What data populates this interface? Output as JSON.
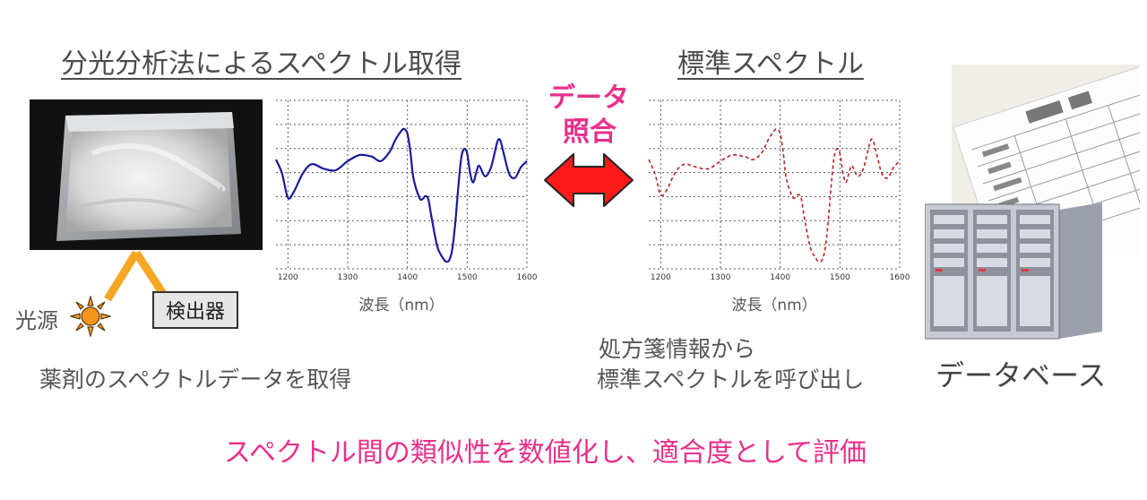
{
  "left": {
    "title": "分光分析法によるスペクトル取得",
    "light_source_label": "光源",
    "detector_label": "検出器",
    "caption": "薬剤のスペクトルデータを取得"
  },
  "center": {
    "match_label_line1": "データ",
    "match_label_line2": "照合",
    "arrow_color": "#ff1a1a"
  },
  "right": {
    "title": "標準スペクトル",
    "caption_line1": "処方箋情報から",
    "caption_line2": "標準スペクトルを呼び出し",
    "database_label": "データベース"
  },
  "bottom": {
    "summary": "スペクトル間の類似性を数値化し、適合度として評価"
  },
  "chart_data": [
    {
      "type": "line",
      "xlabel": "波長（nm）",
      "xticks": [
        1200,
        1300,
        1400,
        1500,
        1600
      ],
      "xlim": [
        1180,
        1600
      ],
      "ylim": [
        0,
        1
      ],
      "grid": true,
      "style": "solid",
      "color": "#1a1a9a",
      "series": [
        {
          "x": [
            1180,
            1190,
            1200,
            1210,
            1225,
            1240,
            1260,
            1280,
            1300,
            1320,
            1340,
            1355,
            1370,
            1380,
            1390,
            1395,
            1400,
            1405,
            1410,
            1420,
            1425,
            1430,
            1435,
            1440,
            1450,
            1460,
            1465,
            1470,
            1475,
            1480,
            1485,
            1490,
            1495,
            1500,
            1505,
            1510,
            1515,
            1520,
            1530,
            1540,
            1550,
            1555,
            1560,
            1570,
            1580,
            1590,
            1600
          ],
          "y": [
            0.67,
            0.58,
            0.42,
            0.46,
            0.58,
            0.64,
            0.61,
            0.6,
            0.66,
            0.7,
            0.69,
            0.66,
            0.72,
            0.8,
            0.86,
            0.87,
            0.84,
            0.72,
            0.55,
            0.42,
            0.41,
            0.43,
            0.41,
            0.3,
            0.1,
            0.02,
            0.0,
            0.01,
            0.08,
            0.25,
            0.48,
            0.68,
            0.74,
            0.71,
            0.58,
            0.52,
            0.58,
            0.63,
            0.56,
            0.62,
            0.78,
            0.8,
            0.73,
            0.58,
            0.55,
            0.62,
            0.66
          ]
        }
      ]
    },
    {
      "type": "line",
      "xlabel": "波長（nm）",
      "xticks": [
        1200,
        1300,
        1400,
        1500,
        1600
      ],
      "xlim": [
        1180,
        1600
      ],
      "ylim": [
        0,
        1
      ],
      "grid": true,
      "style": "dashed",
      "color": "#c02020",
      "series": [
        {
          "x": [
            1180,
            1190,
            1200,
            1210,
            1225,
            1240,
            1260,
            1280,
            1300,
            1320,
            1340,
            1355,
            1370,
            1380,
            1390,
            1395,
            1400,
            1405,
            1410,
            1420,
            1425,
            1430,
            1435,
            1440,
            1450,
            1460,
            1465,
            1470,
            1475,
            1480,
            1485,
            1490,
            1495,
            1500,
            1505,
            1510,
            1515,
            1520,
            1530,
            1540,
            1550,
            1555,
            1560,
            1570,
            1580,
            1590,
            1600
          ],
          "y": [
            0.67,
            0.58,
            0.44,
            0.47,
            0.59,
            0.64,
            0.62,
            0.61,
            0.66,
            0.7,
            0.69,
            0.67,
            0.72,
            0.8,
            0.86,
            0.87,
            0.84,
            0.72,
            0.55,
            0.43,
            0.42,
            0.44,
            0.42,
            0.3,
            0.1,
            0.02,
            0.0,
            0.01,
            0.08,
            0.25,
            0.48,
            0.68,
            0.74,
            0.71,
            0.58,
            0.52,
            0.58,
            0.63,
            0.56,
            0.62,
            0.78,
            0.8,
            0.73,
            0.58,
            0.55,
            0.62,
            0.66
          ]
        }
      ]
    }
  ]
}
